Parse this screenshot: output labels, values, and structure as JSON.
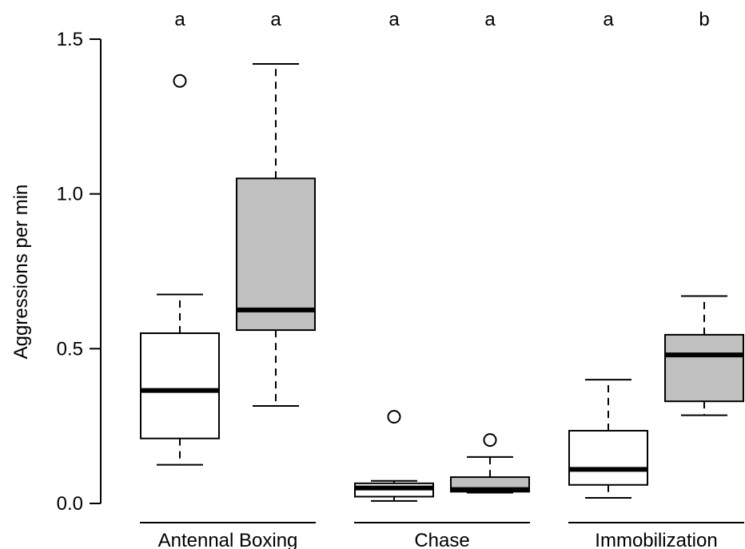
{
  "chart_data": {
    "type": "boxplot",
    "ylabel": "Aggressions per min",
    "ylim": [
      0,
      1.5
    ],
    "yticks": [
      "0.0",
      "0.5",
      "1.0",
      "1.5"
    ],
    "ytick_values": [
      0,
      0.5,
      1.0,
      1.5
    ],
    "groups": [
      {
        "label": "Antennal Boxing",
        "boxes": [
          {
            "fill": "#ffffff",
            "whisker_low": 0.125,
            "q1": 0.21,
            "median": 0.365,
            "q3": 0.55,
            "whisker_high": 0.675,
            "outliers": [
              1.365
            ],
            "letter": "a"
          },
          {
            "fill": "#c0c0c0",
            "whisker_low": 0.315,
            "q1": 0.56,
            "median": 0.625,
            "q3": 1.05,
            "whisker_high": 1.42,
            "outliers": [],
            "letter": "a"
          }
        ]
      },
      {
        "label": "Chase",
        "boxes": [
          {
            "fill": "#ffffff",
            "whisker_low": 0.008,
            "q1": 0.022,
            "median": 0.05,
            "q3": 0.065,
            "whisker_high": 0.073,
            "outliers": [
              0.28
            ],
            "letter": "a"
          },
          {
            "fill": "#c0c0c0",
            "whisker_low": 0.035,
            "q1": 0.038,
            "median": 0.045,
            "q3": 0.085,
            "whisker_high": 0.15,
            "outliers": [
              0.205
            ],
            "letter": "a"
          }
        ]
      },
      {
        "label": "Immobilization",
        "boxes": [
          {
            "fill": "#ffffff",
            "whisker_low": 0.018,
            "q1": 0.06,
            "median": 0.11,
            "q3": 0.235,
            "whisker_high": 0.4,
            "outliers": [],
            "letter": "a"
          },
          {
            "fill": "#c0c0c0",
            "whisker_low": 0.285,
            "q1": 0.33,
            "median": 0.48,
            "q3": 0.545,
            "whisker_high": 0.67,
            "outliers": [],
            "letter": "b"
          }
        ]
      }
    ],
    "grid": false,
    "legend": "none"
  }
}
